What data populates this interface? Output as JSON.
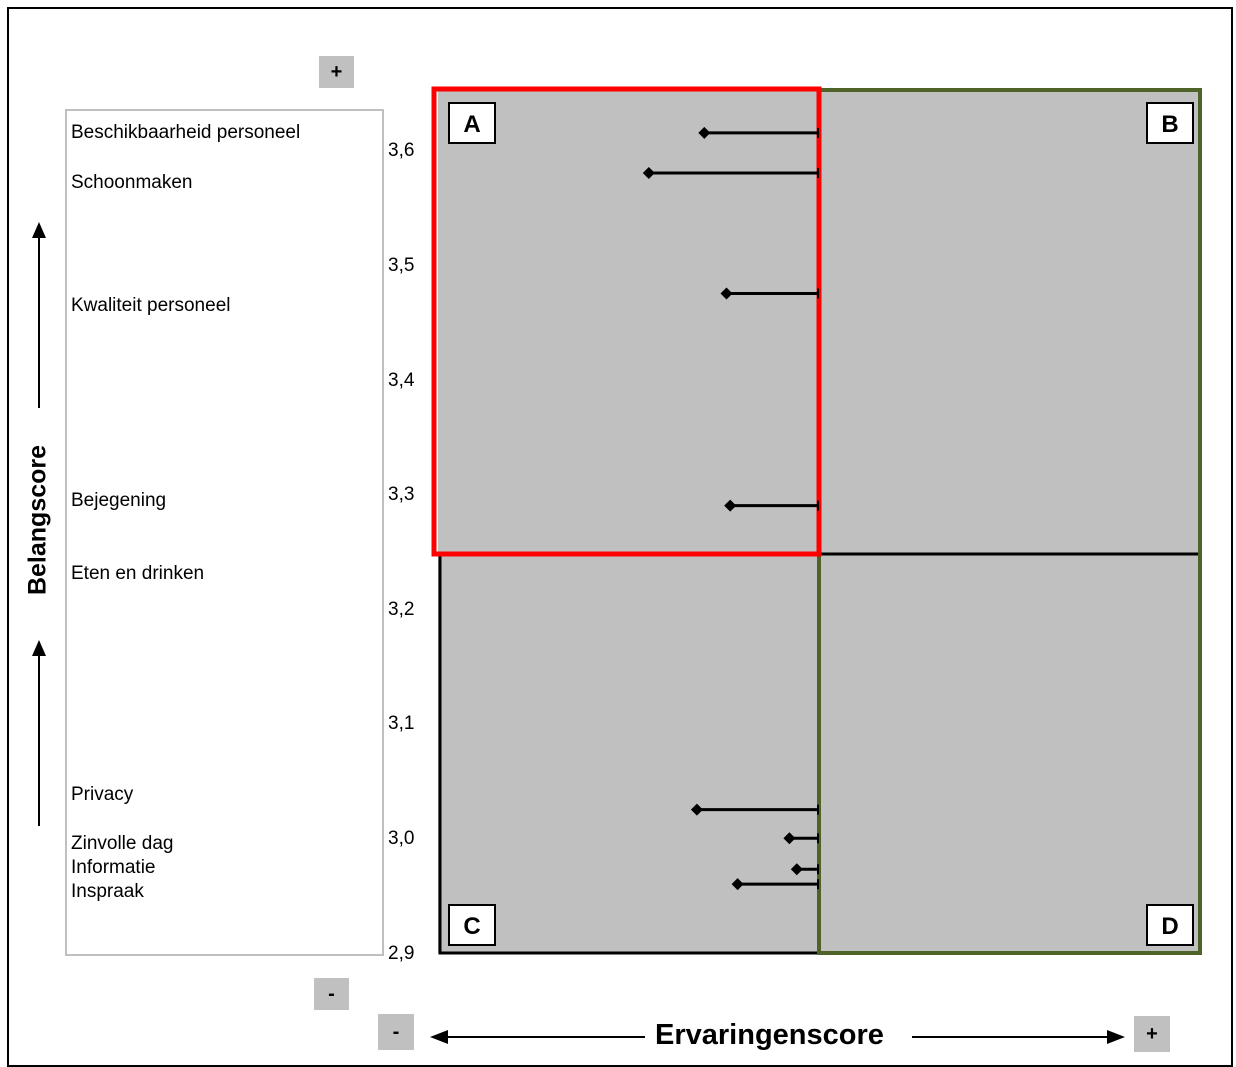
{
  "chart_data": {
    "type": "scatter",
    "ylabel": "Belangscore",
    "xlabel": "Ervaringenscore",
    "ylim": [
      2.9,
      3.65
    ],
    "yticks": [
      "3,6",
      "3,5",
      "3,4",
      "3,3",
      "3,2",
      "3,1",
      "3,0",
      "2,9"
    ],
    "ytick_values": [
      3.6,
      3.5,
      3.4,
      3.3,
      3.2,
      3.1,
      3.0,
      2.9
    ],
    "quadrant_labels": [
      "A",
      "B",
      "C",
      "D"
    ],
    "signs": {
      "y_top": "+",
      "y_bottom": "-",
      "x_left": "-",
      "x_right": "+"
    },
    "colors": {
      "plot_bg": "#c0c0c0",
      "quadrant_a": "#ff0000",
      "quadrant_bd": "#4f6228",
      "quadrant_c": "#000000",
      "marker": "#000000"
    },
    "points": [
      {
        "name": "Beschikbaarheid personeel",
        "y": 3.615,
        "gap": 0.31
      },
      {
        "name": "Schoonmaken",
        "y": 3.58,
        "gap": 0.46
      },
      {
        "name": "Kwaliteit personeel",
        "y": 3.475,
        "gap": 0.25
      },
      {
        "name": "Bejegening",
        "y": 3.29,
        "gap": 0.24
      },
      {
        "name": "Eten en drinken",
        "y": 3.225,
        "gap": 0.0
      },
      {
        "name": "Privacy",
        "y": 3.025,
        "gap": 0.33
      },
      {
        "name": "Zinvolle dag",
        "y": 3.0,
        "gap": 0.08
      },
      {
        "name": "Informatie",
        "y": 2.973,
        "gap": 0.06
      },
      {
        "name": "Inspraak",
        "y": 2.96,
        "gap": 0.22
      }
    ],
    "category_labels": [
      "Beschikbaarheid personeel",
      "Schoonmaken",
      "Kwaliteit personeel",
      "Bejegening",
      "Eten en drinken",
      "Privacy",
      "Zinvolle dag",
      "Informatie",
      "Inspraak"
    ]
  }
}
